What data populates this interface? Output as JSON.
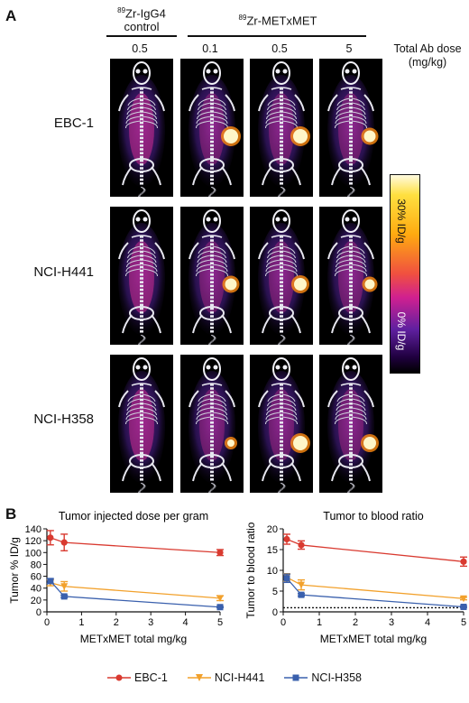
{
  "panel_a": {
    "letter": "A",
    "control_header_iso": "89",
    "control_header_line1": "Zr-IgG4",
    "control_header_line2": "control",
    "treat_header_iso": "89",
    "treat_header": "Zr-METxMET",
    "dose_label_line1": "Total Ab dose",
    "dose_label_line2": "(mg/kg)",
    "doses": [
      "0.5",
      "0.1",
      "0.5",
      "5"
    ],
    "rows": [
      "EBC-1",
      "NCI-H441",
      "NCI-H358"
    ],
    "colorbar_top": "30% ID/g",
    "colorbar_bottom": "0% ID/g"
  },
  "panel_b": {
    "letter": "B"
  },
  "colors": {
    "ebc1": "#d93a30",
    "h441": "#f2a12c",
    "h358": "#3a60ad"
  },
  "legend": [
    "EBC-1",
    "NCI-H441",
    "NCI-H358"
  ],
  "chart_data": [
    {
      "type": "line",
      "title": "Tumor injected dose per gram",
      "xlabel": "METxMET total mg/kg",
      "ylabel": "Tumor % ID/g",
      "x": [
        0.1,
        0.5,
        5
      ],
      "xlim": [
        0,
        5
      ],
      "ylim": [
        0,
        140
      ],
      "xticks": [
        0,
        1,
        2,
        3,
        4,
        5
      ],
      "yticks": [
        0,
        20,
        40,
        60,
        80,
        100,
        120,
        140
      ],
      "series": [
        {
          "name": "EBC-1",
          "values": [
            125,
            117,
            100
          ],
          "errors": [
            12,
            14,
            5
          ]
        },
        {
          "name": "NCI-H441",
          "values": [
            49,
            43,
            23
          ],
          "errors": [
            5,
            8,
            4
          ]
        },
        {
          "name": "NCI-H358",
          "values": [
            52,
            26,
            8
          ],
          "errors": [
            4,
            2,
            1
          ]
        }
      ]
    },
    {
      "type": "line",
      "title": "Tumor to blood ratio",
      "xlabel": "METxMET total mg/kg",
      "ylabel": "Tumor to blood ratio",
      "x": [
        0.1,
        0.5,
        5
      ],
      "xlim": [
        0,
        5
      ],
      "ylim": [
        0,
        20
      ],
      "xticks": [
        0,
        1,
        2,
        3,
        4,
        5
      ],
      "yticks": [
        0,
        5,
        10,
        15,
        20
      ],
      "reference_line": 1,
      "series": [
        {
          "name": "EBC-1",
          "values": [
            17.5,
            16.1,
            12.1
          ],
          "errors": [
            1.2,
            1.0,
            1.1
          ]
        },
        {
          "name": "NCI-H441",
          "values": [
            8.3,
            6.5,
            3.2
          ],
          "errors": [
            0.9,
            1.2,
            0.3
          ]
        },
        {
          "name": "NCI-H358",
          "values": [
            8.1,
            4.1,
            1.2
          ],
          "errors": [
            1.0,
            0.3,
            0.2
          ]
        }
      ]
    }
  ]
}
